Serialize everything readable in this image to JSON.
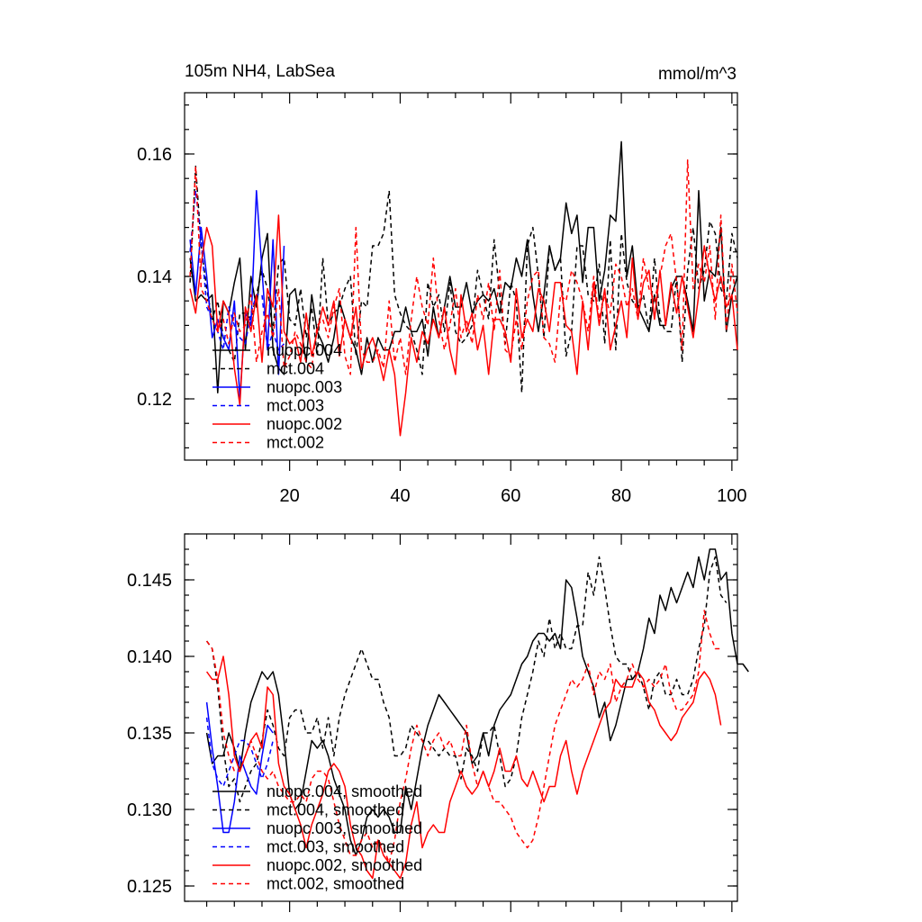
{
  "chart_data": [
    {
      "type": "line",
      "title": "105m NH4, LabSea",
      "units": "mmol/m^3",
      "xlabel": "",
      "ylabel": "",
      "xlim": [
        1,
        101
      ],
      "ylim": [
        0.11,
        0.17
      ],
      "xticks": [
        20,
        40,
        60,
        80,
        100
      ],
      "yticks": [
        0.12,
        0.14,
        0.16
      ],
      "ytick_labels": [
        "0.12",
        "0.14",
        "0.16"
      ],
      "legend_position": "bottom-left",
      "series": [
        {
          "name": "nuopc.004",
          "color": "#000000",
          "dash": "solid",
          "x_start": 2,
          "values": [
            0.143,
            0.136,
            0.137,
            0.136,
            0.137,
            0.121,
            0.136,
            0.134,
            0.139,
            0.143,
            0.128,
            0.14,
            0.135,
            0.143,
            0.147,
            0.128,
            0.125,
            0.124,
            0.137,
            0.138,
            0.132,
            0.126,
            0.137,
            0.131,
            0.129,
            0.126,
            0.13,
            0.136,
            0.133,
            0.13,
            0.128,
            0.124,
            0.13,
            0.126,
            0.13,
            0.128,
            0.128,
            0.131,
            0.131,
            0.135,
            0.131,
            0.131,
            0.133,
            0.127,
            0.135,
            0.13,
            0.135,
            0.14,
            0.135,
            0.135,
            0.139,
            0.134,
            0.136,
            0.137,
            0.136,
            0.138,
            0.134,
            0.139,
            0.138,
            0.143,
            0.14,
            0.146,
            0.137,
            0.131,
            0.137,
            0.145,
            0.141,
            0.143,
            0.152,
            0.147,
            0.15,
            0.139,
            0.148,
            0.148,
            0.136,
            0.141,
            0.15,
            0.149,
            0.162,
            0.14,
            0.145,
            0.135,
            0.133,
            0.131,
            0.137,
            0.132,
            0.132,
            0.138,
            0.14,
            0.14,
            0.136,
            0.131,
            0.154,
            0.136,
            0.141,
            0.14,
            0.148,
            0.131,
            0.137,
            0.14
          ]
        },
        {
          "name": "mct.004",
          "color": "#000000",
          "dash": "dashed",
          "x_start": 2,
          "values": [
            0.139,
            0.158,
            0.145,
            0.138,
            0.133,
            0.136,
            0.13,
            0.128,
            0.126,
            0.134,
            0.134,
            0.133,
            0.137,
            0.141,
            0.138,
            0.131,
            0.142,
            0.143,
            0.133,
            0.132,
            0.138,
            0.13,
            0.135,
            0.127,
            0.143,
            0.132,
            0.134,
            0.135,
            0.138,
            0.14,
            0.127,
            0.136,
            0.135,
            0.145,
            0.145,
            0.147,
            0.154,
            0.137,
            0.134,
            0.132,
            0.131,
            0.128,
            0.124,
            0.139,
            0.135,
            0.137,
            0.131,
            0.139,
            0.131,
            0.129,
            0.13,
            0.132,
            0.141,
            0.137,
            0.133,
            0.146,
            0.137,
            0.129,
            0.139,
            0.136,
            0.121,
            0.145,
            0.148,
            0.14,
            0.13,
            0.145,
            0.141,
            0.143,
            0.127,
            0.131,
            0.145,
            0.145,
            0.137,
            0.136,
            0.142,
            0.129,
            0.146,
            0.128,
            0.147,
            0.139,
            0.136,
            0.135,
            0.137,
            0.131,
            0.143,
            0.133,
            0.131,
            0.131,
            0.14,
            0.126,
            0.141,
            0.148,
            0.138,
            0.141,
            0.149,
            0.147,
            0.138,
            0.136,
            0.147,
            0.143
          ]
        },
        {
          "name": "nuopc.003",
          "color": "#0000ff",
          "dash": "solid",
          "x_start": 2,
          "values": [
            0.146,
            0.137,
            0.148,
            0.14,
            0.13,
            0.133,
            0.13,
            0.128,
            0.136,
            0.12,
            0.134,
            0.132,
            0.154,
            0.141,
            0.128,
            0.146,
            0.124,
            0.145
          ]
        },
        {
          "name": "mct.003",
          "color": "#0000ff",
          "dash": "dashed",
          "x_start": 2,
          "values": [
            0.144,
            0.154,
            0.146,
            0.135,
            0.133,
            0.131,
            0.128,
            0.135,
            0.132,
            0.13,
            0.129,
            0.134,
            0.137,
            0.137,
            0.128,
            0.131,
            0.128,
            0.129
          ]
        },
        {
          "name": "nuopc.002",
          "color": "#ff0000",
          "dash": "solid",
          "x_start": 2,
          "values": [
            0.138,
            0.134,
            0.142,
            0.148,
            0.145,
            0.131,
            0.136,
            0.134,
            0.125,
            0.119,
            0.135,
            0.131,
            0.137,
            0.126,
            0.138,
            0.135,
            0.15,
            0.131,
            0.129,
            0.13,
            0.126,
            0.134,
            0.127,
            0.131,
            0.135,
            0.132,
            0.136,
            0.127,
            0.133,
            0.13,
            0.135,
            0.125,
            0.128,
            0.13,
            0.127,
            0.123,
            0.128,
            0.124,
            0.114,
            0.121,
            0.13,
            0.126,
            0.131,
            0.129,
            0.133,
            0.13,
            0.135,
            0.128,
            0.124,
            0.137,
            0.131,
            0.134,
            0.128,
            0.132,
            0.124,
            0.133,
            0.133,
            0.131,
            0.126,
            0.138,
            0.13,
            0.133,
            0.131,
            0.138,
            0.136,
            0.131,
            0.139,
            0.139,
            0.132,
            0.131,
            0.124,
            0.136,
            0.128,
            0.139,
            0.132,
            0.138,
            0.128,
            0.132,
            0.136,
            0.13,
            0.143,
            0.133,
            0.139,
            0.141,
            0.133,
            0.141,
            0.132,
            0.139,
            0.134,
            0.14,
            0.135,
            0.13,
            0.137,
            0.145,
            0.14,
            0.136,
            0.14,
            0.135,
            0.137,
            0.128
          ]
        },
        {
          "name": "mct.002",
          "color": "#ff0000",
          "dash": "dashed",
          "x_start": 2,
          "values": [
            0.14,
            0.158,
            0.138,
            0.136,
            0.133,
            0.131,
            0.133,
            0.129,
            0.134,
            0.131,
            0.132,
            0.137,
            0.126,
            0.131,
            0.134,
            0.13,
            0.138,
            0.125,
            0.127,
            0.131,
            0.129,
            0.126,
            0.125,
            0.132,
            0.133,
            0.13,
            0.135,
            0.138,
            0.127,
            0.124,
            0.148,
            0.128,
            0.126,
            0.126,
            0.128,
            0.125,
            0.136,
            0.126,
            0.13,
            0.124,
            0.133,
            0.14,
            0.135,
            0.132,
            0.143,
            0.133,
            0.128,
            0.132,
            0.138,
            0.13,
            0.133,
            0.129,
            0.137,
            0.133,
            0.139,
            0.131,
            0.141,
            0.128,
            0.127,
            0.133,
            0.128,
            0.136,
            0.14,
            0.141,
            0.13,
            0.129,
            0.126,
            0.137,
            0.136,
            0.141,
            0.139,
            0.136,
            0.131,
            0.14,
            0.133,
            0.137,
            0.134,
            0.142,
            0.14,
            0.135,
            0.138,
            0.133,
            0.143,
            0.138,
            0.136,
            0.14,
            0.145,
            0.147,
            0.139,
            0.128,
            0.159,
            0.138,
            0.142,
            0.139,
            0.145,
            0.133,
            0.15,
            0.131,
            0.142,
            0.134
          ]
        }
      ]
    },
    {
      "type": "line",
      "title": "",
      "xlabel": "",
      "ylabel": "",
      "xlim": [
        1,
        101
      ],
      "ylim": [
        0.124,
        0.148
      ],
      "xticks": [
        20,
        40,
        60,
        80,
        100
      ],
      "yticks": [
        0.125,
        0.13,
        0.135,
        0.14,
        0.145
      ],
      "ytick_labels": [
        "0.125",
        "0.130",
        "0.135",
        "0.140",
        "0.145"
      ],
      "legend_position": "bottom-left",
      "series": [
        {
          "name": "nuopc.004, smoothed",
          "color": "#000000",
          "dash": "solid",
          "x_start": 5,
          "values": [
            0.135,
            0.133,
            0.1335,
            0.1335,
            0.135,
            0.134,
            0.1325,
            0.135,
            0.137,
            0.138,
            0.139,
            0.1385,
            0.139,
            0.1375,
            0.1345,
            0.131,
            0.13,
            0.1305,
            0.1325,
            0.1345,
            0.134,
            0.1345,
            0.1335,
            0.132,
            0.131,
            0.13,
            0.128,
            0.127,
            0.128,
            0.1295,
            0.13,
            0.1295,
            0.13,
            0.1295,
            0.1285,
            0.1285,
            0.1315,
            0.13,
            0.132,
            0.134,
            0.1355,
            0.1365,
            0.1375,
            0.137,
            0.1365,
            0.136,
            0.1355,
            0.135,
            0.133,
            0.1335,
            0.135,
            0.1335,
            0.1355,
            0.1365,
            0.137,
            0.1375,
            0.1385,
            0.1395,
            0.14,
            0.141,
            0.1415,
            0.1415,
            0.141,
            0.1415,
            0.1405,
            0.145,
            0.1445,
            0.1425,
            0.14,
            0.139,
            0.138,
            0.136,
            0.137,
            0.1345,
            0.1355,
            0.137,
            0.1385,
            0.1385,
            0.139,
            0.1405,
            0.1425,
            0.1415,
            0.144,
            0.143,
            0.1445,
            0.1435,
            0.1445,
            0.1455,
            0.1445,
            0.1465,
            0.145,
            0.147,
            0.147,
            0.145,
            0.1455,
            0.1415,
            0.1395,
            0.1395,
            0.139
          ]
        },
        {
          "name": "mct.004, smoothed",
          "color": "#000000",
          "dash": "dashed",
          "x_start": 5,
          "values": [
            0.141,
            0.1405,
            0.138,
            0.134,
            0.1315,
            0.132,
            0.1305,
            0.1315,
            0.1325,
            0.133,
            0.1345,
            0.1365,
            0.1355,
            0.134,
            0.1335,
            0.136,
            0.1365,
            0.1365,
            0.135,
            0.135,
            0.136,
            0.134,
            0.136,
            0.1335,
            0.136,
            0.1375,
            0.1385,
            0.1395,
            0.1405,
            0.1395,
            0.1385,
            0.1385,
            0.137,
            0.136,
            0.1335,
            0.1335,
            0.134,
            0.1355,
            0.135,
            0.1345,
            0.1345,
            0.134,
            0.1335,
            0.134,
            0.1335,
            0.1335,
            0.132,
            0.134,
            0.1335,
            0.1325,
            0.135,
            0.135,
            0.1355,
            0.1335,
            0.1315,
            0.132,
            0.1335,
            0.136,
            0.1375,
            0.139,
            0.141,
            0.14,
            0.1425,
            0.1405,
            0.1415,
            0.1405,
            0.1405,
            0.142,
            0.142,
            0.1455,
            0.144,
            0.1465,
            0.1445,
            0.142,
            0.14,
            0.1395,
            0.1395,
            0.1385,
            0.139,
            0.138,
            0.1365,
            0.1385,
            0.139,
            0.1375,
            0.1375,
            0.1385,
            0.1375,
            0.1375,
            0.1385,
            0.1405,
            0.142,
            0.1455,
            0.1465,
            0.144,
            0.1435
          ]
        },
        {
          "name": "nuopc.003, smoothed",
          "color": "#0000ff",
          "dash": "solid",
          "x_start": 5,
          "values": [
            0.137,
            0.134,
            0.1315,
            0.1285,
            0.1285,
            0.1305,
            0.1335,
            0.1325,
            0.1315,
            0.131,
            0.1335,
            0.1355,
            0.135
          ]
        },
        {
          "name": "mct.003, smoothed",
          "color": "#0000ff",
          "dash": "dashed",
          "x_start": 5,
          "values": [
            0.136,
            0.133,
            0.132,
            0.1315,
            0.1325,
            0.1335,
            0.1345,
            0.1345,
            0.134,
            0.133,
            0.132,
            0.133,
            0.1345
          ]
        },
        {
          "name": "nuopc.002, smoothed",
          "color": "#ff0000",
          "dash": "solid",
          "x_start": 5,
          "values": [
            0.139,
            0.1385,
            0.1385,
            0.14,
            0.1375,
            0.1335,
            0.1325,
            0.1335,
            0.1345,
            0.135,
            0.134,
            0.138,
            0.1375,
            0.133,
            0.1315,
            0.131,
            0.13,
            0.129,
            0.1275,
            0.129,
            0.13,
            0.131,
            0.1325,
            0.133,
            0.1325,
            0.1315,
            0.129,
            0.1275,
            0.127,
            0.126,
            0.1255,
            0.128,
            0.127,
            0.1265,
            0.126,
            0.1255,
            0.1265,
            0.129,
            0.1305,
            0.1275,
            0.1285,
            0.129,
            0.1285,
            0.1285,
            0.1305,
            0.1315,
            0.1325,
            0.1315,
            0.131,
            0.1315,
            0.1325,
            0.1315,
            0.1325,
            0.134,
            0.1325,
            0.1325,
            0.1335,
            0.132,
            0.1315,
            0.1325,
            0.1315,
            0.1305,
            0.1315,
            0.1315,
            0.1335,
            0.1345,
            0.1325,
            0.131,
            0.1325,
            0.1335,
            0.1345,
            0.1355,
            0.1365,
            0.137,
            0.1385,
            0.138,
            0.138,
            0.138,
            0.139,
            0.1385,
            0.137,
            0.1365,
            0.1355,
            0.135,
            0.1345,
            0.135,
            0.136,
            0.1365,
            0.137,
            0.1385,
            0.139,
            0.1385,
            0.1375,
            0.1355
          ]
        },
        {
          "name": "mct.002, smoothed",
          "color": "#ff0000",
          "dash": "dashed",
          "x_start": 5,
          "values": [
            0.141,
            0.1405,
            0.1385,
            0.135,
            0.1335,
            0.1325,
            0.1325,
            0.1335,
            0.1345,
            0.1335,
            0.1325,
            0.132,
            0.1325,
            0.1315,
            0.131,
            0.1305,
            0.1305,
            0.131,
            0.1305,
            0.132,
            0.1325,
            0.1325,
            0.132,
            0.1305,
            0.129,
            0.128,
            0.127,
            0.127,
            0.128,
            0.1285,
            0.1275,
            0.128,
            0.1275,
            0.1265,
            0.128,
            0.1305,
            0.132,
            0.134,
            0.1355,
            0.1345,
            0.1335,
            0.1345,
            0.135,
            0.134,
            0.1345,
            0.1335,
            0.1335,
            0.1355,
            0.133,
            0.1315,
            0.1325,
            0.1315,
            0.1305,
            0.1305,
            0.13,
            0.1295,
            0.1285,
            0.128,
            0.1275,
            0.128,
            0.1295,
            0.1315,
            0.1335,
            0.1355,
            0.1365,
            0.1375,
            0.1385,
            0.138,
            0.1385,
            0.1395,
            0.1375,
            0.139,
            0.1385,
            0.1395,
            0.137,
            0.138,
            0.1385,
            0.1395,
            0.1385,
            0.138,
            0.1385,
            0.138,
            0.1385,
            0.1395,
            0.1375,
            0.1365,
            0.1365,
            0.137,
            0.1375,
            0.139,
            0.143,
            0.1415,
            0.1405,
            0.1405
          ]
        }
      ]
    }
  ]
}
